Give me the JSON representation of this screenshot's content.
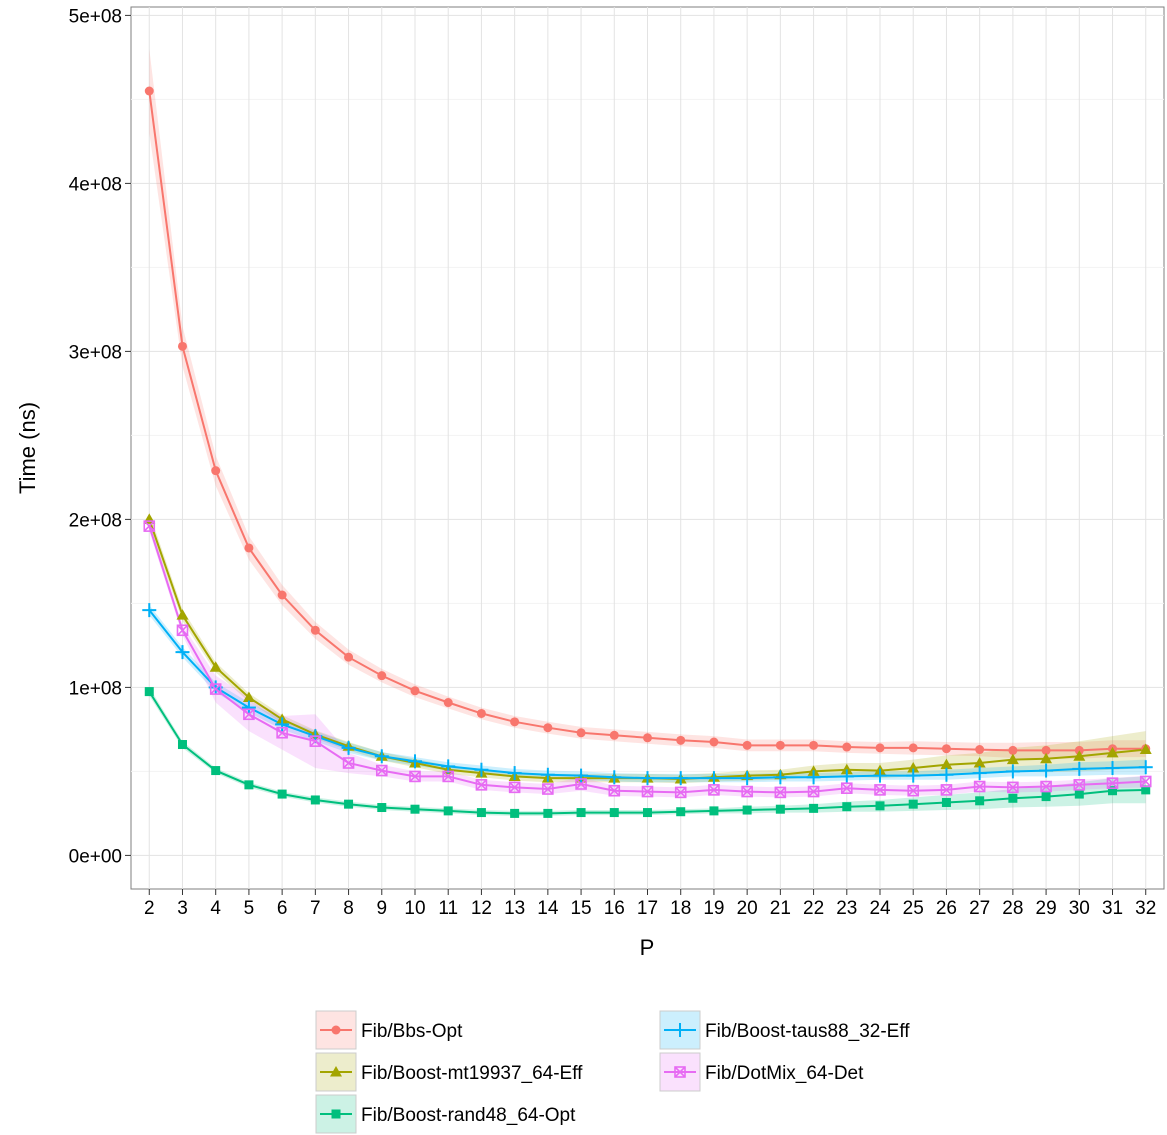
{
  "chart_data": {
    "type": "line",
    "xlabel": "P",
    "ylabel": "Time (ns)",
    "x": [
      2,
      3,
      4,
      5,
      6,
      7,
      8,
      9,
      10,
      11,
      12,
      13,
      14,
      15,
      16,
      17,
      18,
      19,
      20,
      21,
      22,
      23,
      24,
      25,
      26,
      27,
      28,
      29,
      30,
      31,
      32
    ],
    "ylim": [
      0,
      500000000
    ],
    "y_ticks": [
      0,
      100000000,
      200000000,
      300000000,
      400000000,
      500000000
    ],
    "y_tick_labels": [
      "0e+00",
      "1e+08",
      "2e+08",
      "3e+08",
      "4e+08",
      "5e+08"
    ],
    "grid": true,
    "legend_position": "bottom",
    "series": [
      {
        "name": "Fib/Bbs-Opt",
        "color": "#F8766D",
        "marker": "circle",
        "values": [
          455000000,
          303000000,
          229000000,
          183000000,
          155000000,
          134000000,
          118000000,
          107000000,
          98000000,
          91000000,
          84500000,
          79500000,
          76000000,
          73000000,
          71500000,
          70000000,
          68500000,
          67500000,
          65500000,
          65500000,
          65500000,
          64500000,
          64000000,
          64000000,
          63500000,
          63000000,
          62500000,
          62500000,
          62500000,
          63500000,
          63500000
        ],
        "band": [
          25000000,
          12000000,
          9000000,
          7000000,
          6000000,
          5000000,
          4500000,
          4000000,
          3800000,
          3500000,
          3500000,
          3500000,
          3500000,
          3500000,
          3500000,
          3500000,
          3500000,
          3500000,
          3500000,
          3500000,
          3500000,
          3500000,
          3500000,
          4000000,
          4000000,
          4000000,
          4500000,
          5000000,
          5000000,
          5000000,
          5000000
        ]
      },
      {
        "name": "Fib/Boost-mt19937_64-Eff",
        "color": "#A3A500",
        "marker": "triangle",
        "values": [
          200000000,
          143000000,
          112000000,
          94000000,
          81000000,
          72000000,
          65000000,
          59000000,
          55000000,
          51000000,
          49000000,
          47000000,
          46000000,
          46000000,
          46000000,
          46000000,
          45500000,
          46500000,
          47500000,
          48000000,
          50000000,
          51000000,
          50500000,
          52000000,
          54000000,
          55000000,
          57000000,
          57500000,
          59000000,
          61000000,
          63000000
        ],
        "band": [
          4000000,
          3500000,
          3000000,
          2500000,
          2500000,
          2500000,
          2500000,
          2500000,
          2500000,
          2500000,
          2500000,
          2500000,
          2500000,
          2500000,
          2500000,
          2500000,
          2500000,
          2500000,
          3000000,
          3000000,
          3500000,
          4000000,
          4500000,
          5000000,
          5500000,
          6000000,
          7000000,
          8000000,
          9000000,
          10000000,
          11000000
        ]
      },
      {
        "name": "Fib/Boost-rand48_64-Opt",
        "color": "#00BF7D",
        "marker": "square",
        "values": [
          97500000,
          66000000,
          50500000,
          42000000,
          36500000,
          33000000,
          30500000,
          28500000,
          27500000,
          26500000,
          25500000,
          25000000,
          25000000,
          25500000,
          25500000,
          25500000,
          26000000,
          26500000,
          27000000,
          27500000,
          28000000,
          29000000,
          29500000,
          30500000,
          31500000,
          32500000,
          34000000,
          35000000,
          36500000,
          38500000,
          39000000
        ],
        "band": [
          2500000,
          2000000,
          1500000,
          1500000,
          1500000,
          1500000,
          1500000,
          1500000,
          1500000,
          1500000,
          1500000,
          1500000,
          1500000,
          1500000,
          1500000,
          1500000,
          1500000,
          1500000,
          2000000,
          2000000,
          2500000,
          3000000,
          3500000,
          4000000,
          4500000,
          5000000,
          5500000,
          6000000,
          7000000,
          7500000,
          8000000
        ]
      },
      {
        "name": "Fib/Boost-taus88_32-Eff",
        "color": "#00B0F6",
        "marker": "plus",
        "values": [
          146000000,
          121000000,
          100000000,
          88000000,
          78000000,
          71000000,
          64000000,
          59000000,
          56000000,
          53000000,
          51000000,
          49000000,
          48000000,
          47500000,
          46500000,
          46000000,
          46000000,
          46000000,
          46000000,
          46500000,
          46500000,
          47000000,
          47500000,
          47500000,
          48000000,
          49000000,
          50000000,
          50500000,
          51500000,
          52000000,
          52500000
        ],
        "band": [
          3000000,
          3000000,
          3000000,
          3000000,
          3000000,
          3000000,
          3000000,
          2500000,
          2500000,
          2500000,
          2500000,
          2500000,
          2500000,
          2500000,
          2500000,
          2500000,
          2500000,
          2500000,
          2500000,
          2500000,
          2500000,
          2500000,
          2500000,
          2500000,
          3000000,
          3000000,
          3000000,
          3500000,
          4000000,
          4000000,
          4500000
        ]
      },
      {
        "name": "Fib/DotMix_64-Det",
        "color": "#E76BF3",
        "marker": "boxx",
        "values": [
          196000000,
          134000000,
          99000000,
          84000000,
          73000000,
          68000000,
          55000000,
          50500000,
          47000000,
          47000000,
          42000000,
          40500000,
          39500000,
          42500000,
          38500000,
          38000000,
          37500000,
          39000000,
          38000000,
          37500000,
          38000000,
          40000000,
          39000000,
          38500000,
          39000000,
          41000000,
          40500000,
          41000000,
          42000000,
          43000000,
          44000000
        ],
        "band": [
          3000000,
          3000000,
          8000000,
          10000000,
          10000000,
          16000000,
          6000000,
          3500000,
          3000000,
          3000000,
          3000000,
          3000000,
          3000000,
          4000000,
          3000000,
          3000000,
          3000000,
          3000000,
          3000000,
          3000000,
          3000000,
          3000000,
          3000000,
          3000000,
          3000000,
          3000000,
          3000000,
          3000000,
          3000000,
          3000000,
          3500000
        ]
      }
    ]
  }
}
